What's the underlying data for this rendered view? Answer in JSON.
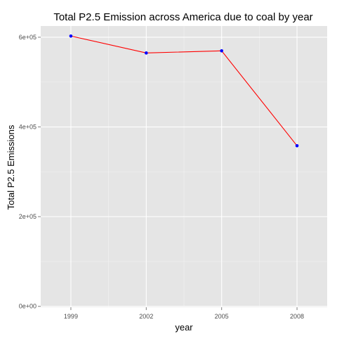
{
  "chart_data": {
    "type": "line",
    "title": "Total P2.5 Emission across America due to coal by year",
    "xlabel": "year",
    "ylabel": "Total P2.5 Emissions",
    "x": [
      "1999",
      "2002",
      "2005",
      "2008"
    ],
    "values": [
      602624,
      564936,
      569655,
      358084
    ],
    "xlim": [
      1997.8,
      2009.2
    ],
    "ylim": [
      -2000,
      625000
    ],
    "y_ticks": [
      0,
      200000,
      400000,
      600000
    ],
    "y_tick_labels": [
      "0e+00",
      "2e+05",
      "4e+05",
      "6e+05"
    ],
    "grid": true,
    "line_color": "#ff0000",
    "point_color": "#0000ff",
    "panel_background": "#e5e5e5",
    "grid_color": "#ffffff",
    "tick_label_color": "#4d4d4d"
  }
}
